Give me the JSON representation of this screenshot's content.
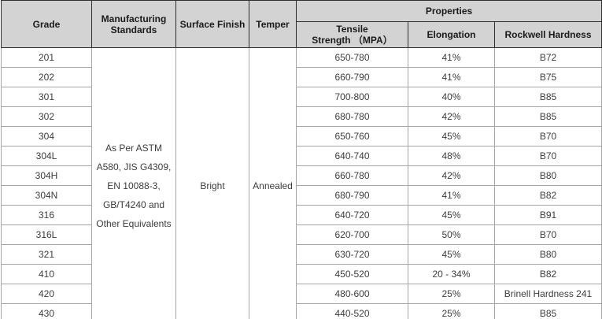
{
  "colors": {
    "header_bg": "#d3d3d3",
    "header_border": "#2f2f2f",
    "header_text": "#1b1b1b",
    "body_border": "#a6a6a6",
    "body_text": "#3d3d3d",
    "body_bg": "#ffffff"
  },
  "table": {
    "headers": {
      "grade": "Grade",
      "manufacturing_standards_lines": [
        "Manufacturing",
        "Standards"
      ],
      "surface_finish": "Surface Finish",
      "temper": "Temper",
      "properties": "Properties",
      "tensile_strength_lines": [
        "Tensile",
        "Strength （MPA）"
      ],
      "elongation": "Elongation",
      "rockwell_hardness": "Rockwell Hardness"
    },
    "merged": {
      "manufacturing_standards_lines": [
        "As Per ASTM",
        "A580, JIS G4309,",
        "EN 10088-3,",
        "GB/T4240 and",
        "Other Equivalents"
      ],
      "surface_finish": "Bright",
      "temper": "Annealed"
    },
    "rows": [
      {
        "grade": "201",
        "tensile": "650-780",
        "elongation": "41%",
        "hardness": "B72"
      },
      {
        "grade": "202",
        "tensile": "660-790",
        "elongation": "41%",
        "hardness": "B75"
      },
      {
        "grade": "301",
        "tensile": "700-800",
        "elongation": "40%",
        "hardness": "B85"
      },
      {
        "grade": "302",
        "tensile": "680-780",
        "elongation": "42%",
        "hardness": "B85"
      },
      {
        "grade": "304",
        "tensile": "650-760",
        "elongation": "45%",
        "hardness": "B70"
      },
      {
        "grade": "304L",
        "tensile": "640-740",
        "elongation": "48%",
        "hardness": "B70"
      },
      {
        "grade": "304H",
        "tensile": "660-780",
        "elongation": "42%",
        "hardness": "B80"
      },
      {
        "grade": "304N",
        "tensile": "680-790",
        "elongation": "41%",
        "hardness": "B82"
      },
      {
        "grade": "316",
        "tensile": "640-720",
        "elongation": "45%",
        "hardness": "B91"
      },
      {
        "grade": "316L",
        "tensile": "620-700",
        "elongation": "50%",
        "hardness": "B70"
      },
      {
        "grade": "321",
        "tensile": "630-720",
        "elongation": "45%",
        "hardness": "B80"
      },
      {
        "grade": "410",
        "tensile": "450-520",
        "elongation": "20 - 34%",
        "hardness": "B82"
      },
      {
        "grade": "420",
        "tensile": "480-600",
        "elongation": "25%",
        "hardness": "Brinell Hardness 241"
      },
      {
        "grade": "430",
        "tensile": "440-520",
        "elongation": "25%",
        "hardness": "B85"
      }
    ]
  }
}
